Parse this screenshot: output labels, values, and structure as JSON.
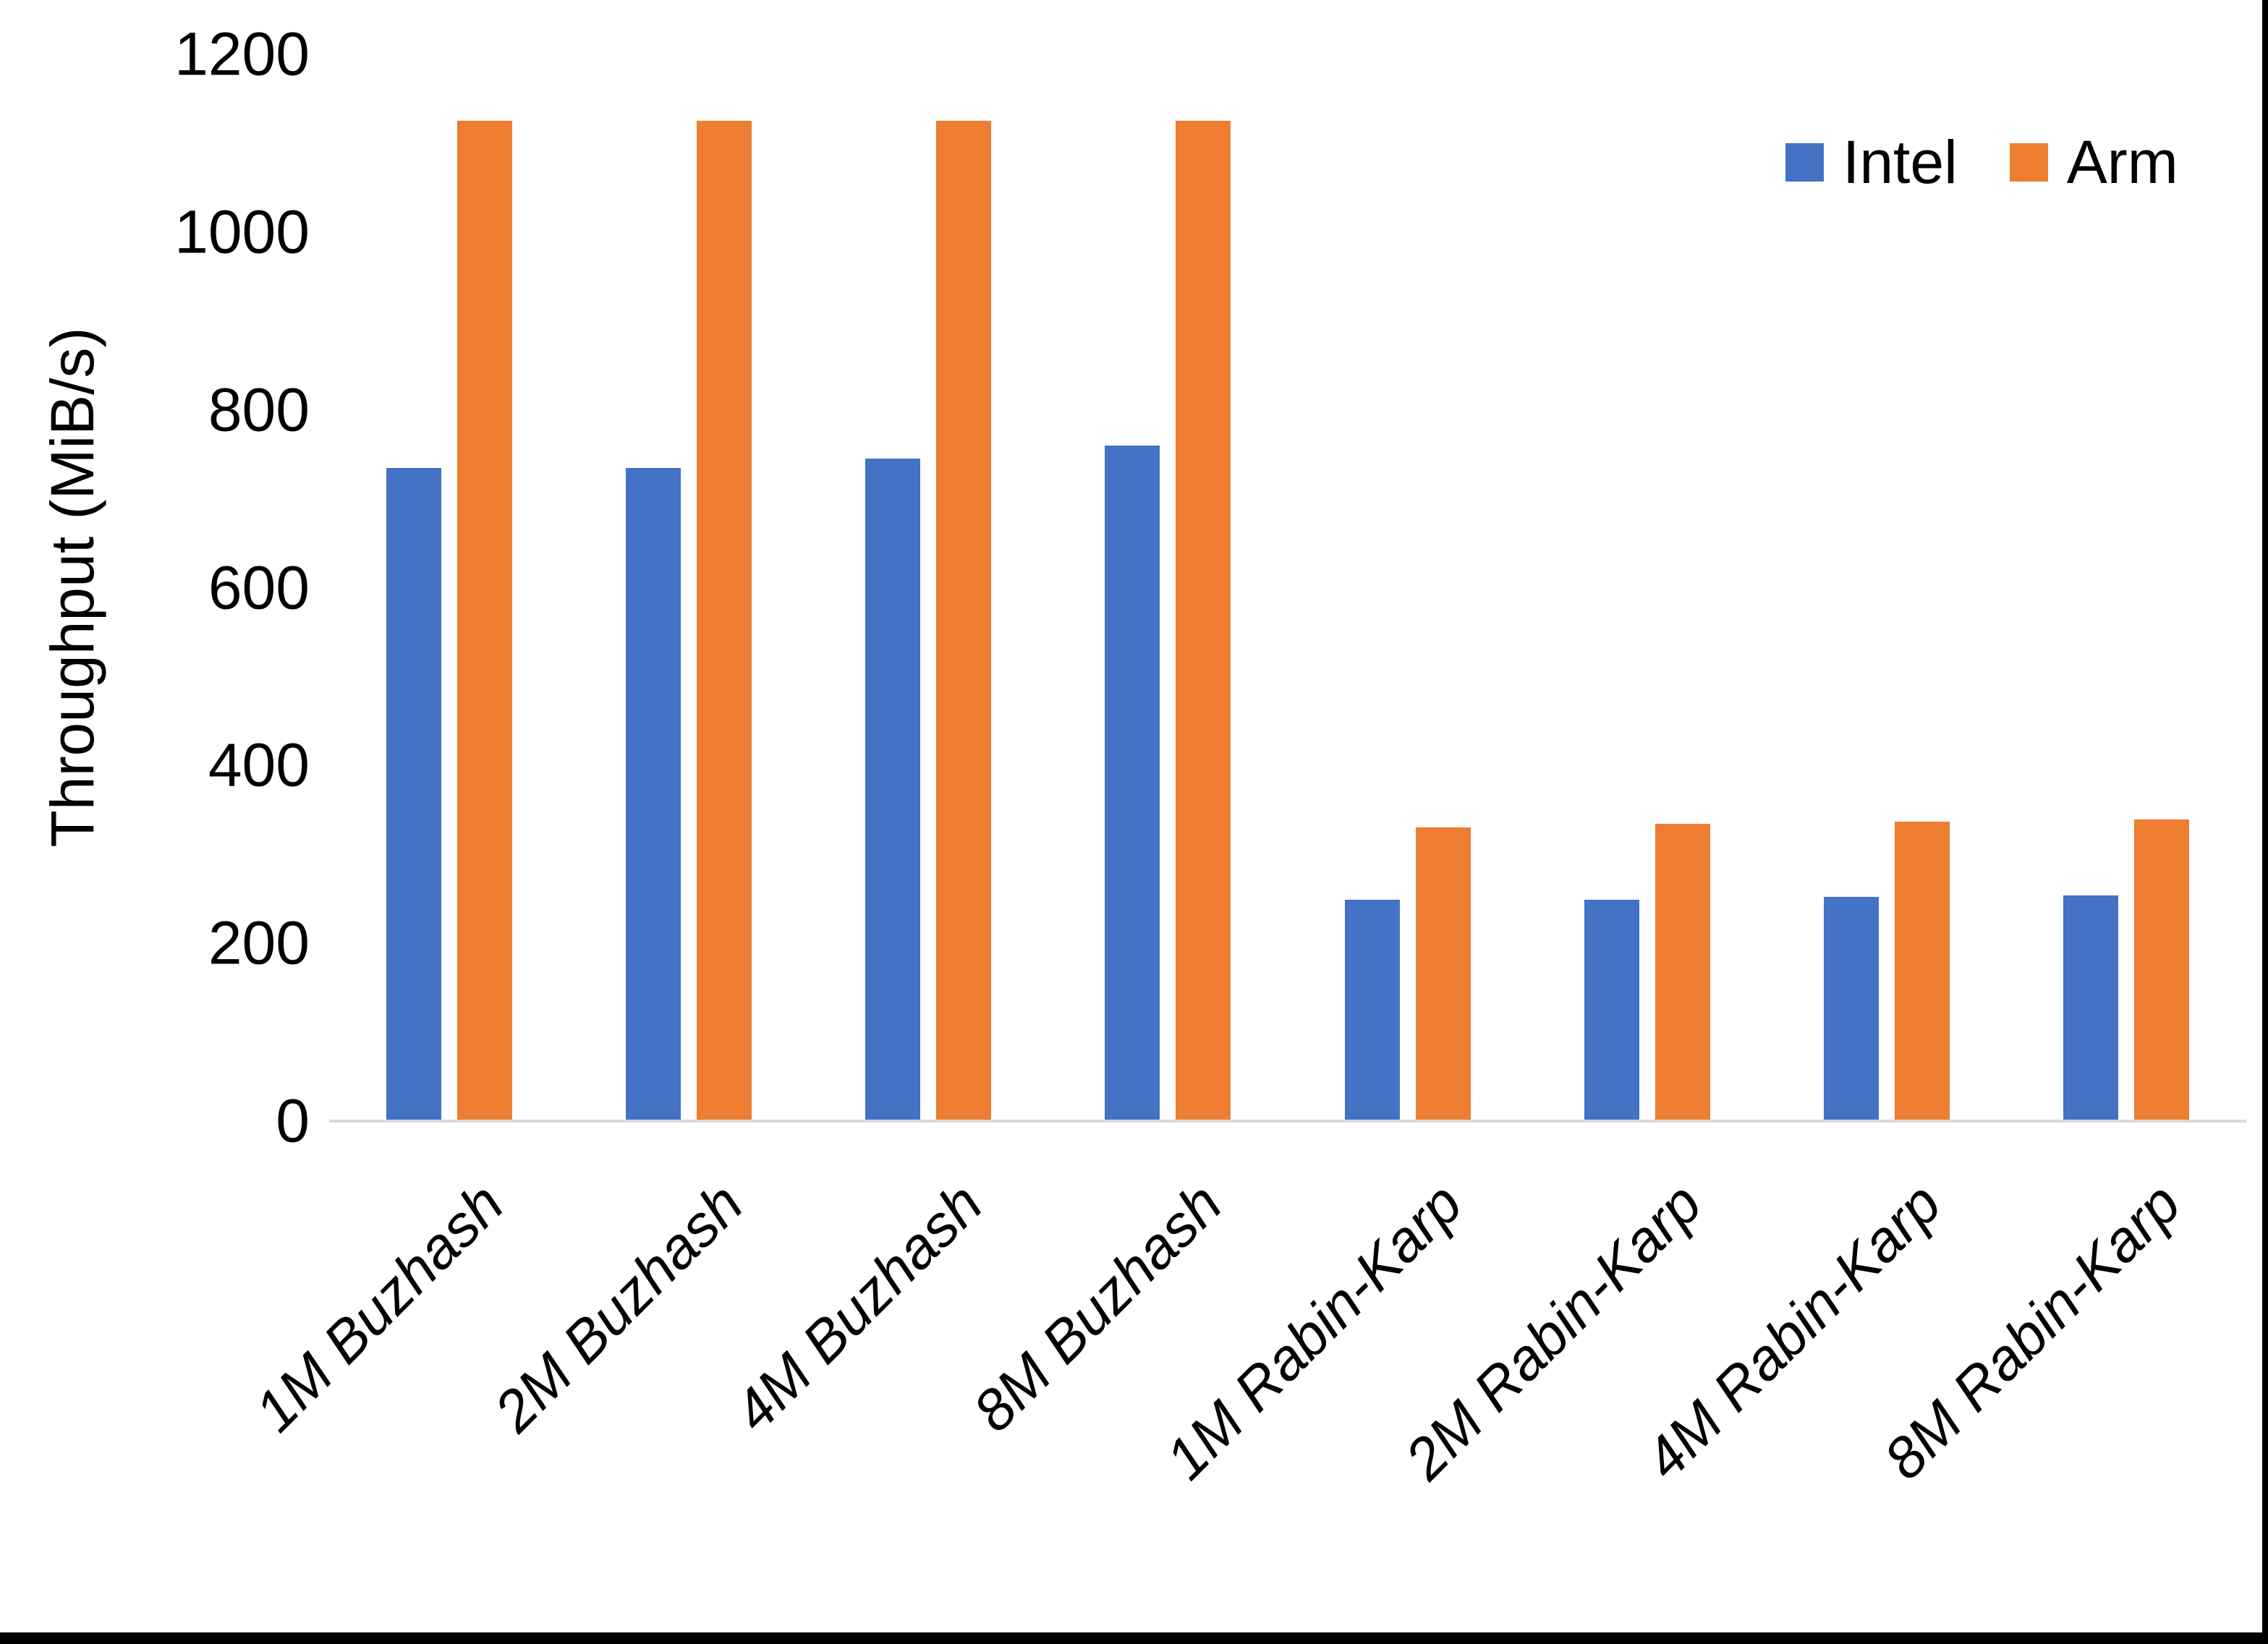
{
  "chart_data": {
    "type": "bar",
    "title": "",
    "xlabel": "",
    "ylabel": "Throughput (MiB/s)",
    "ylim": [
      0,
      1200
    ],
    "yticks": [
      0,
      200,
      400,
      600,
      800,
      1000,
      1200
    ],
    "grid": false,
    "legend_position": "top-right",
    "categories": [
      "1M Buzhash",
      "2M Buzhash",
      "4M Buzhash",
      "8M Buzhash",
      "1M Rabin-Karp",
      "2M Rabin-Karp",
      "4M Rabin-Karp",
      "8M Rabin-Karp"
    ],
    "series": [
      {
        "name": "Intel",
        "color": "#4472C4",
        "values": [
          735,
          735,
          745,
          760,
          249,
          249,
          252,
          254
        ]
      },
      {
        "name": "Arm",
        "color": "#ED7D31",
        "values": [
          1125,
          1125,
          1125,
          1125,
          330,
          334,
          337,
          339
        ]
      }
    ]
  },
  "colors": {
    "background": "#FFFFFF",
    "axis_line": "#D9D9D9",
    "text": "#000000",
    "border": "#000000"
  }
}
